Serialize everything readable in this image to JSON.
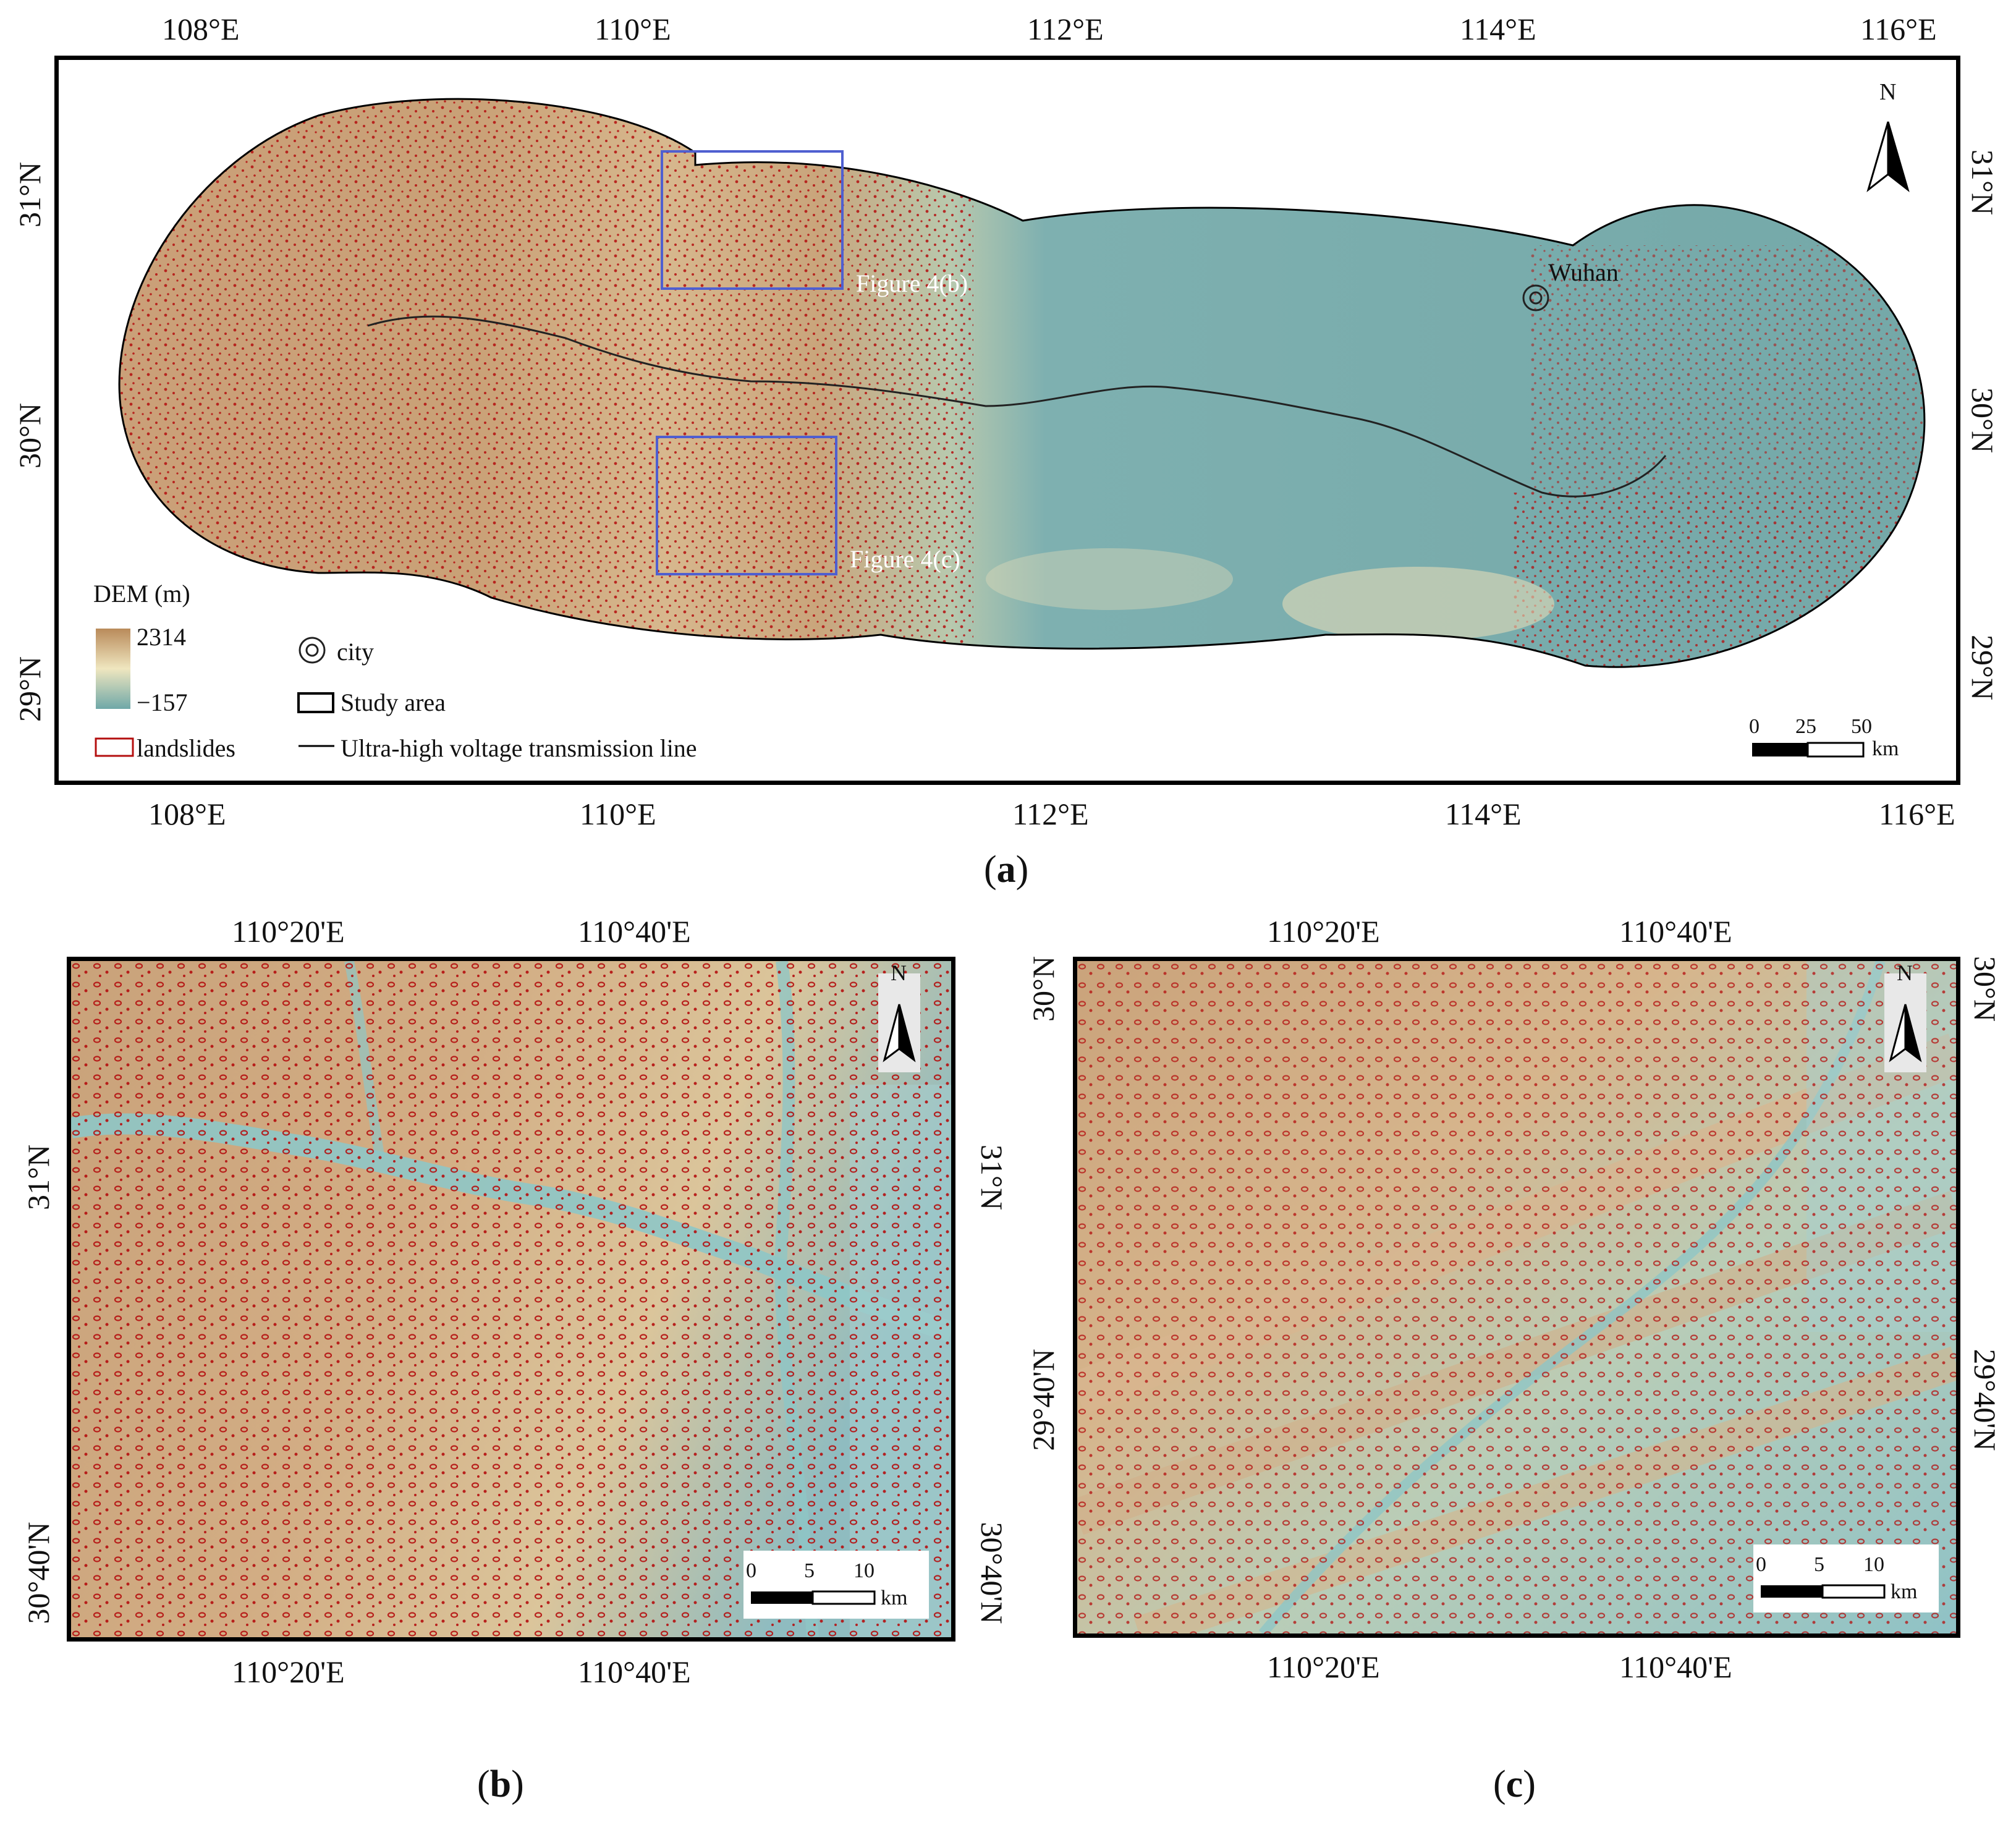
{
  "panel_a": {
    "caption": "a",
    "lon_ticks": [
      "108°E",
      "110°E",
      "112°E",
      "114°E",
      "116°E"
    ],
    "lat_ticks": [
      "31°N",
      "30°N",
      "29°N"
    ],
    "box_b_label": "Figure 4(b)",
    "box_c_label": "Figure 4(c)",
    "city_name": "Wuhan",
    "north": "N",
    "legend": {
      "dem_title": "DEM (m)",
      "dem_max": "2314",
      "dem_min": "−157",
      "city": "city",
      "study_area": "Study area",
      "landslides": "landslides",
      "line": "Ultra-high voltage transmission line"
    },
    "scalebar": {
      "labels": [
        "0",
        "25",
        "50"
      ],
      "unit": "km"
    }
  },
  "panel_b": {
    "caption": "b",
    "lon_ticks": [
      "110°20'E",
      "110°40'E"
    ],
    "lat_ticks": [
      "31°N",
      "30°40'N"
    ],
    "north": "N",
    "scalebar": {
      "labels": [
        "0",
        "5",
        "10"
      ],
      "unit": "km"
    }
  },
  "panel_c": {
    "caption": "c",
    "lon_ticks": [
      "110°20'E",
      "110°40'E"
    ],
    "lat_ticks": [
      "30°N",
      "29°40'N"
    ],
    "north": "N",
    "scalebar": {
      "labels": [
        "0",
        "5",
        "10"
      ],
      "unit": "km"
    }
  },
  "colors": {
    "dem_high": "#b98a5a",
    "dem_mid": "#e6dcb0",
    "dem_low": "#6fa8a8",
    "landslide": "#b40f0f",
    "box": "#4f5fd0"
  }
}
